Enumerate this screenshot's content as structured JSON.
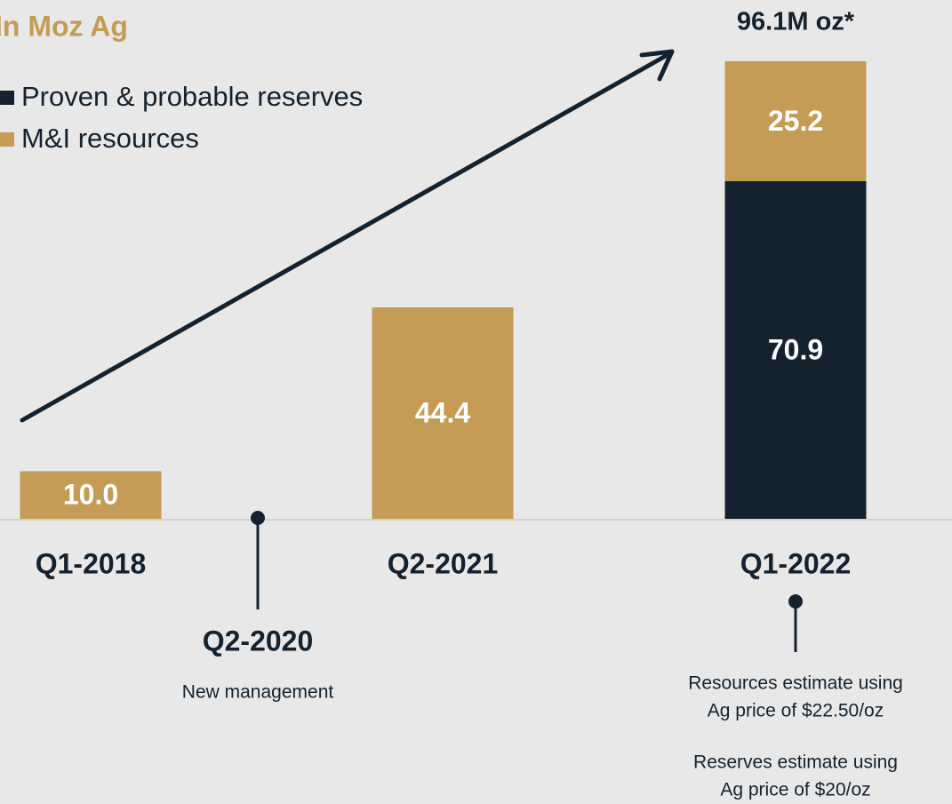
{
  "chart_data": {
    "type": "bar",
    "stacked": true,
    "title": "In Moz Ag",
    "total_label": "96.1M oz*",
    "categories": [
      "Q1-2018",
      "Q2-2021",
      "Q1-2022"
    ],
    "series": [
      {
        "name": "Proven & probable reserves",
        "color": "#14222f",
        "values": [
          null,
          null,
          70.9
        ],
        "value_labels": [
          null,
          null,
          "70.9"
        ]
      },
      {
        "name": "M&I resources",
        "color": "#c49c55",
        "values": [
          10.0,
          44.4,
          25.2
        ],
        "value_labels": [
          "10.0",
          "44.4",
          "25.2"
        ]
      }
    ],
    "ylim": [
      0,
      100
    ],
    "annotations": [
      {
        "label": "Q2-2020",
        "text": [
          "New management"
        ]
      },
      {
        "label": "Q1-2022",
        "text": [
          "Resources estimate using",
          "Ag price of $22.50/oz",
          "Reserves estimate using",
          "Ag price of $20/oz"
        ]
      }
    ]
  }
}
